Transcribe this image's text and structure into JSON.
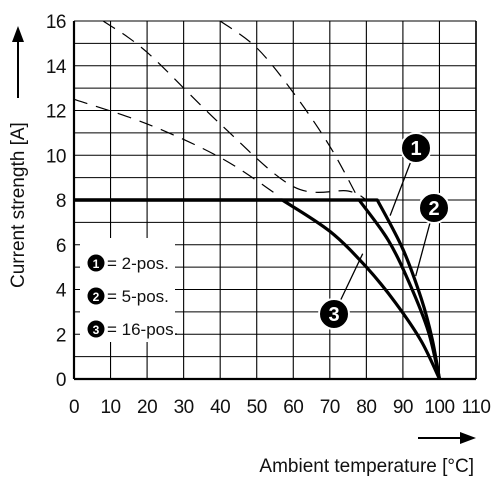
{
  "chart_data": {
    "type": "line",
    "xlabel": "Ambient temperature [°C]",
    "ylabel": "Current strength [A]",
    "xlim": [
      0,
      110
    ],
    "ylim": [
      0,
      16
    ],
    "x_ticks": [
      "0",
      "10",
      "20",
      "30",
      "40",
      "50",
      "60",
      "70",
      "80",
      "90",
      "100",
      "110"
    ],
    "y_ticks": [
      "0",
      "2",
      "4",
      "6",
      "8",
      "10",
      "12",
      "14",
      "16"
    ],
    "grid": true,
    "derating_limit": 8,
    "series": [
      {
        "name": "2-pos.",
        "marker": "1",
        "solid": [
          [
            0,
            8
          ],
          [
            83,
            8
          ],
          [
            90,
            5.8
          ],
          [
            95,
            3.6
          ],
          [
            98,
            1.8
          ],
          [
            100,
            0
          ]
        ],
        "dashed": [
          [
            8,
            16
          ],
          [
            20,
            14.6
          ],
          [
            40,
            11.4
          ],
          [
            60,
            8.6
          ],
          [
            75,
            8.4
          ],
          [
            80,
            8
          ]
        ]
      },
      {
        "name": "5-pos.",
        "marker": "2",
        "solid": [
          [
            0,
            8
          ],
          [
            78,
            8
          ],
          [
            86,
            6.2
          ],
          [
            92,
            4.2
          ],
          [
            97,
            2.1
          ],
          [
            100,
            0
          ]
        ],
        "dashed": [
          [
            40,
            16
          ],
          [
            50,
            14.8
          ],
          [
            60,
            12.8
          ],
          [
            70,
            10.4
          ],
          [
            78,
            8
          ]
        ]
      },
      {
        "name": "16-pos.",
        "marker": "3",
        "solid": [
          [
            0,
            8
          ],
          [
            57,
            8
          ],
          [
            70,
            6.6
          ],
          [
            80,
            5
          ],
          [
            88,
            3.4
          ],
          [
            95,
            1.7
          ],
          [
            100,
            0
          ]
        ],
        "dashed": [
          [
            0,
            12.5
          ],
          [
            20,
            11.4
          ],
          [
            40,
            9.9
          ],
          [
            55,
            8.3
          ]
        ]
      }
    ],
    "legend": {
      "placement": "lower-left",
      "entries": [
        "= 2-pos.",
        "= 5-pos.",
        "= 16-pos."
      ]
    }
  }
}
